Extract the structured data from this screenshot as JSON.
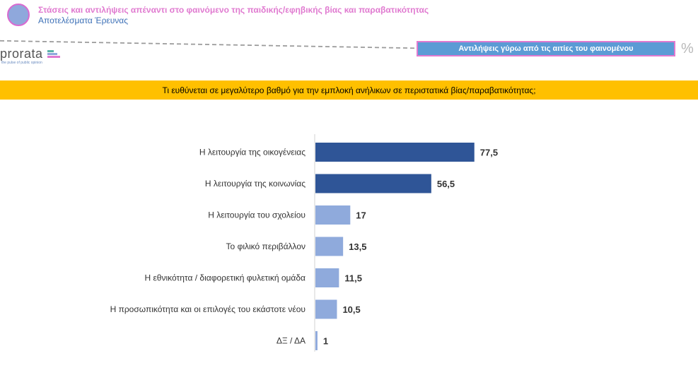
{
  "header": {
    "title": "Στάσεις και αντιλήψεις απέναντι στο φαινόμενο της παιδικής/εφηβικής βίας και παραβατικότητας",
    "subtitle": "Αποτελέσματα Έρευνας"
  },
  "section": {
    "label": "Αντιλήψεις γύρω από τις αιτίες του φαινομένου",
    "unit": "%"
  },
  "logo": {
    "text": "prorata",
    "tagline": "the pulse of public opinion"
  },
  "question": "Τι ευθύνεται σε μεγαλύτερο βαθμό για την εμπλοκή ανήλικων σε περιστατικά βίας/παραβατικότητας;",
  "colors": {
    "dark_bar": "#2f5597",
    "light_bar": "#8faadc",
    "band": "#ffc000",
    "title_pink": "#e07ad0",
    "section_blue": "#5b9bd5"
  },
  "chart_data": {
    "type": "bar",
    "orientation": "horizontal",
    "categories": [
      "Η λειτουργία της οικογένειας",
      "Η λειτουργία της κοινωνίας",
      "Η λειτουργία του σχολείου",
      "Το φιλικό περιβάλλον",
      "Η εθνικότητα / διαφορετική φυλετική ομάδα",
      "Η προσωπικότητα και οι επιλογές του εκάστοτε νέου",
      "ΔΞ / ΔΑ"
    ],
    "values": [
      77.5,
      56.5,
      17,
      13.5,
      11.5,
      10.5,
      1
    ],
    "value_labels": [
      "77,5",
      "56,5",
      "17",
      "13,5",
      "11,5",
      "10,5",
      "1"
    ],
    "bar_colors": [
      "#2f5597",
      "#2f5597",
      "#8faadc",
      "#8faadc",
      "#8faadc",
      "#8faadc",
      "#8faadc"
    ],
    "xlim": [
      0,
      100
    ],
    "grid": false,
    "legend": "none"
  }
}
